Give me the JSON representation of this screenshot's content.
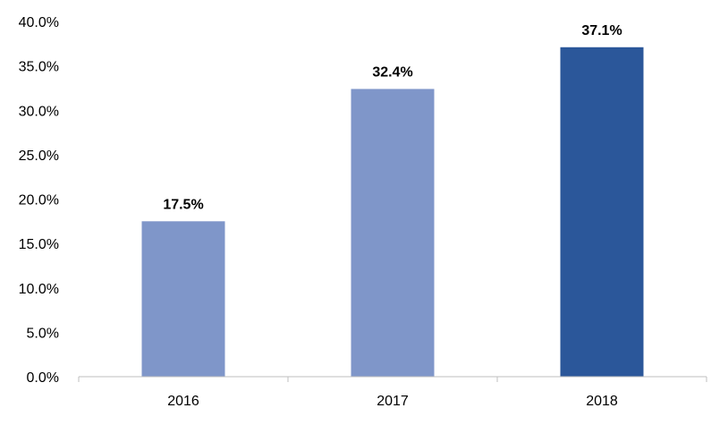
{
  "chart_data": {
    "type": "bar",
    "title": "",
    "xlabel": "",
    "ylabel": "",
    "categories": [
      "2016",
      "2017",
      "2018"
    ],
    "values": [
      17.5,
      32.4,
      37.1
    ],
    "data_labels": [
      "17.5%",
      "32.4%",
      "37.1%"
    ],
    "ylim": [
      0,
      40
    ],
    "yticks": [
      0,
      5,
      10,
      15,
      20,
      25,
      30,
      35,
      40
    ],
    "ytick_labels": [
      "0.0%",
      "5.0%",
      "10.0%",
      "15.0%",
      "20.0%",
      "25.0%",
      "30.0%",
      "35.0%",
      "40.0%"
    ],
    "grid": false,
    "legend": "none",
    "bar_colors": [
      "#7f96c9",
      "#7f96c9",
      "#2b579a"
    ],
    "axis_color": "#bfbfbf"
  }
}
